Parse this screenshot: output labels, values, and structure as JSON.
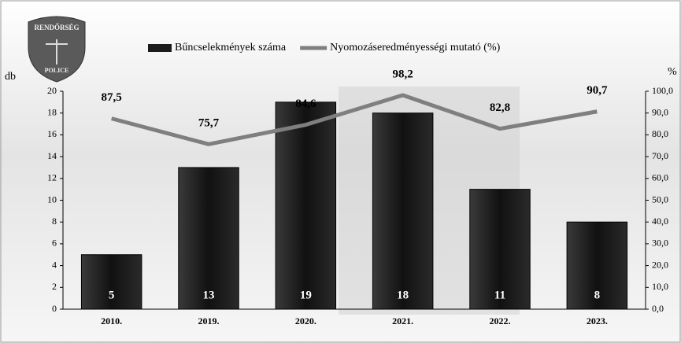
{
  "chart_data": {
    "type": "bar",
    "categories": [
      "2010.",
      "2019.",
      "2020.",
      "2021.",
      "2022.",
      "2023."
    ],
    "series": [
      {
        "name": "Bűncselekmények száma",
        "type": "bar",
        "color": "#1c1c1c",
        "values": [
          5,
          13,
          19,
          18,
          11,
          8
        ]
      },
      {
        "name": "Nyomozáseredményességi mutató (%)",
        "type": "line",
        "axis": "y2",
        "color": "#7f7f7f",
        "values": [
          87.5,
          75.7,
          84.6,
          98.2,
          82.8,
          90.7
        ],
        "value_labels": [
          "87,5",
          "75,7",
          "84,6",
          "98,2",
          "82,8",
          "90,7"
        ]
      }
    ],
    "y_label": "db",
    "y2_label": "%",
    "ylim": [
      0,
      20
    ],
    "yticks": [
      0,
      2,
      4,
      6,
      8,
      10,
      12,
      14,
      16,
      18,
      20
    ],
    "y2lim": [
      0,
      100
    ],
    "y2ticks": [
      {
        "value": 0,
        "label": "0,0"
      },
      {
        "value": 10,
        "label": "10,0"
      },
      {
        "value": 20,
        "label": "20,0"
      },
      {
        "value": 30,
        "label": "30,0"
      },
      {
        "value": 40,
        "label": "40,0"
      },
      {
        "value": 50,
        "label": "50,0"
      },
      {
        "value": 60,
        "label": "60,0"
      },
      {
        "value": 70,
        "label": "70,0"
      },
      {
        "value": 80,
        "label": "80,0"
      },
      {
        "value": 90,
        "label": "90,0"
      },
      {
        "value": 100,
        "label": "100,0"
      }
    ],
    "legend": "top",
    "annotations": [
      "RENDŐRSÉG",
      "POLICE"
    ]
  }
}
